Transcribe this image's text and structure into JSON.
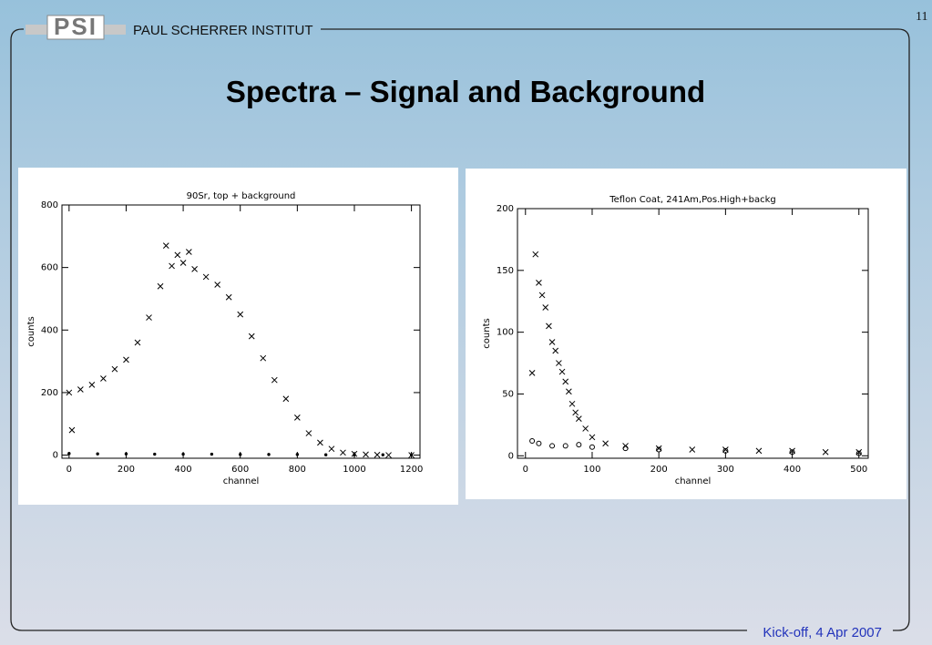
{
  "slide": {
    "logo": "PSI",
    "institute": "PAUL SCHERRER INSTITUT",
    "page_number": "11",
    "title": "Spectra – Signal and Background",
    "footer": "Kick-off, 4 Apr 2007"
  },
  "chart_data": [
    {
      "type": "scatter",
      "title": "90Sr, top + background",
      "x_label": "channel",
      "y_label": "counts",
      "xlim": [
        -25,
        1230
      ],
      "ylim": [
        -10,
        800
      ],
      "xticks": [
        0,
        200,
        400,
        600,
        800,
        1000,
        1200
      ],
      "yticks": [
        0,
        200,
        400,
        600,
        800
      ],
      "series": [
        {
          "marker": "x",
          "color": "#000000",
          "x": [
            10,
            0,
            40,
            80,
            120,
            160,
            200,
            240,
            280,
            320,
            340,
            360,
            380,
            400,
            420,
            440,
            480,
            520,
            560,
            600,
            640,
            680,
            720,
            760,
            800,
            840,
            880,
            920,
            960,
            1000,
            1040,
            1080,
            1120,
            1200
          ],
          "values": [
            80,
            200,
            210,
            225,
            245,
            275,
            305,
            360,
            440,
            540,
            670,
            605,
            640,
            615,
            650,
            595,
            570,
            545,
            505,
            450,
            380,
            310,
            240,
            180,
            120,
            70,
            40,
            20,
            8,
            4,
            2,
            1,
            0,
            0
          ]
        },
        {
          "marker": "dot",
          "color": "#000000",
          "x": [
            0,
            100,
            200,
            300,
            400,
            500,
            600,
            700,
            800,
            900,
            1000,
            1100,
            1200
          ],
          "values": [
            5,
            4,
            4,
            3,
            3,
            3,
            2,
            2,
            2,
            1,
            1,
            1,
            1
          ]
        }
      ]
    },
    {
      "type": "scatter",
      "title": "Teflon Coat, 241Am,Pos.High+backg",
      "x_label": "channel",
      "y_label": "counts",
      "xlim": [
        -12,
        514
      ],
      "ylim": [
        -2,
        200
      ],
      "xticks": [
        0,
        100,
        200,
        300,
        400,
        500
      ],
      "yticks": [
        0,
        50,
        100,
        150,
        200
      ],
      "series": [
        {
          "marker": "x",
          "color": "#000000",
          "x": [
            10,
            15,
            20,
            25,
            30,
            35,
            40,
            45,
            50,
            55,
            60,
            65,
            70,
            75,
            80,
            90,
            100,
            120,
            150,
            200,
            250,
            300,
            350,
            400,
            450,
            500
          ],
          "values": [
            67,
            163,
            140,
            130,
            120,
            105,
            92,
            85,
            75,
            68,
            60,
            52,
            42,
            35,
            30,
            22,
            15,
            10,
            8,
            6,
            5,
            5,
            4,
            4,
            3,
            3
          ]
        },
        {
          "marker": "o",
          "color": "#000000",
          "x": [
            10,
            20,
            40,
            60,
            80,
            100,
            150,
            200,
            300,
            400,
            500
          ],
          "values": [
            12,
            10,
            8,
            8,
            9,
            7,
            6,
            5,
            4,
            3,
            2
          ]
        }
      ]
    }
  ]
}
